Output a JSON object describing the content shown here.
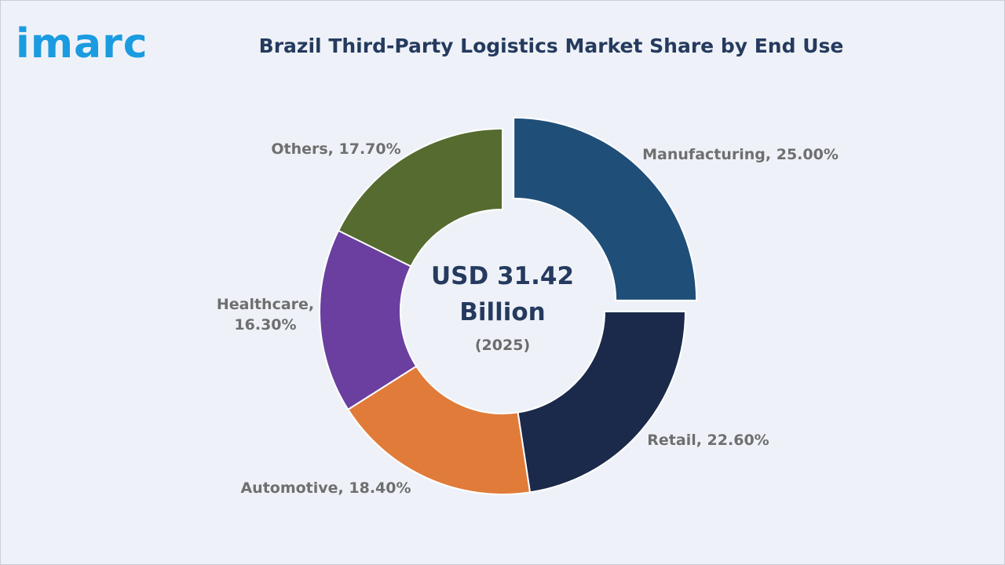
{
  "logo": {
    "text": "imarc"
  },
  "chart_data": {
    "type": "pie",
    "title": "Brazil Third-Party Logistics Market Share by End Use",
    "center_value_line1": "USD 31.42",
    "center_value_line2": "Billion",
    "center_year": "(2025)",
    "categories": [
      "Manufacturing",
      "Retail",
      "Automotive",
      "Healthcare",
      "Others"
    ],
    "values": [
      25.0,
      22.6,
      18.4,
      16.3,
      17.7
    ],
    "labels": [
      [
        "Manufacturing, 25.00%"
      ],
      [
        "Retail, 22.60%"
      ],
      [
        "Automotive, 18.40%"
      ],
      [
        "Healthcare,",
        "16.30%"
      ],
      [
        "Others, 17.70%"
      ]
    ],
    "colors": [
      "#1f4e79",
      "#1b2a4a",
      "#e07b39",
      "#6a3fa0",
      "#556b2f"
    ],
    "exploded_slice": "Manufacturing",
    "legend": "none"
  }
}
